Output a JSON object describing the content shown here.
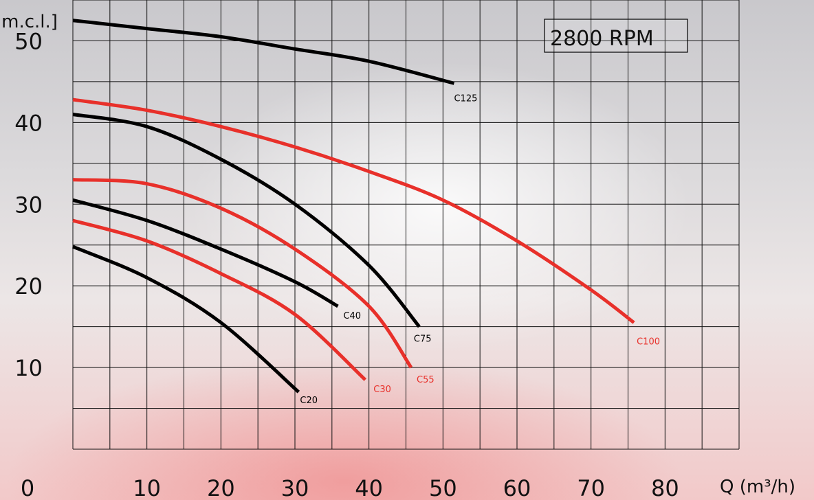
{
  "chart_data": {
    "type": "line",
    "title": "",
    "xlabel": "Q (m³/h)",
    "ylabel": "[m.c.l.]",
    "annotation": "2800 RPM",
    "xlim": [
      0,
      90
    ],
    "ylim": [
      0,
      55
    ],
    "x_ticks": [
      {
        "value": 0,
        "label": "0"
      },
      {
        "value": 10,
        "label": "10"
      },
      {
        "value": 20,
        "label": "20"
      },
      {
        "value": 30,
        "label": "30"
      },
      {
        "value": 40,
        "label": "40"
      },
      {
        "value": 50,
        "label": "50"
      },
      {
        "value": 60,
        "label": "60"
      },
      {
        "value": 70,
        "label": "70"
      },
      {
        "value": 80,
        "label": "80"
      }
    ],
    "y_ticks": [
      {
        "value": 10,
        "label": "10"
      },
      {
        "value": 20,
        "label": "20"
      },
      {
        "value": 30,
        "label": "30"
      },
      {
        "value": 40,
        "label": "40"
      },
      {
        "value": 50,
        "label": "50"
      }
    ],
    "grid": true,
    "series": [
      {
        "name": "C20",
        "color": "#000000",
        "x": [
          0,
          10,
          20,
          30.5
        ],
        "y": [
          24.8,
          21.0,
          15.5,
          7.0
        ]
      },
      {
        "name": "C30",
        "color": "#e8302a",
        "x": [
          0,
          10,
          20,
          30,
          39.5
        ],
        "y": [
          28.0,
          25.5,
          21.5,
          16.5,
          8.5
        ]
      },
      {
        "name": "C40",
        "color": "#000000",
        "x": [
          0,
          10,
          20,
          30,
          35.8
        ],
        "y": [
          30.5,
          28.0,
          24.5,
          20.5,
          17.5
        ]
      },
      {
        "name": "C55",
        "color": "#e8302a",
        "x": [
          0,
          10,
          20,
          30,
          40,
          45.7
        ],
        "y": [
          33.0,
          32.5,
          29.5,
          24.5,
          17.5,
          10.0
        ]
      },
      {
        "name": "C75",
        "color": "#000000",
        "x": [
          0,
          10,
          20,
          30,
          40,
          46.8
        ],
        "y": [
          41.0,
          39.5,
          35.5,
          30.0,
          22.5,
          15.0
        ]
      },
      {
        "name": "C100",
        "color": "#e8302a",
        "x": [
          0,
          10,
          20,
          30,
          40,
          50,
          60,
          70,
          75.8
        ],
        "y": [
          42.8,
          41.5,
          39.5,
          37.0,
          34.0,
          30.5,
          25.5,
          19.5,
          15.5
        ]
      },
      {
        "name": "C125",
        "color": "#000000",
        "x": [
          0,
          10,
          20,
          30,
          40,
          51.5
        ],
        "y": [
          52.5,
          51.5,
          50.5,
          49.0,
          47.5,
          44.8
        ]
      }
    ]
  }
}
